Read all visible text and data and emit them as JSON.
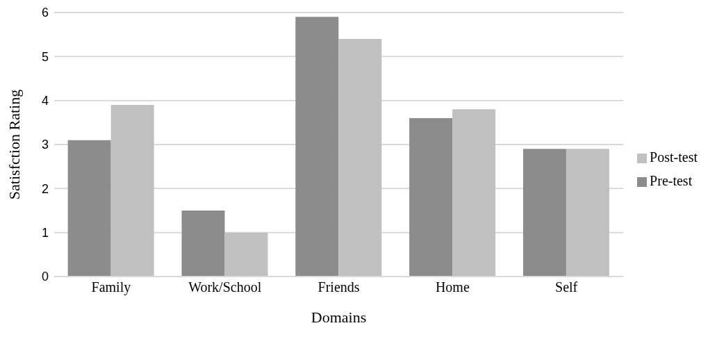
{
  "chart_data": {
    "type": "bar",
    "xlabel": "Domains",
    "ylabel": "Satisfction Rating",
    "categories": [
      "Family",
      "Work/School",
      "Friends",
      "Home",
      "Self"
    ],
    "series": [
      {
        "name": "Pre-test",
        "color": "#8c8c8c",
        "values": [
          3.1,
          1.5,
          5.9,
          3.6,
          2.9
        ]
      },
      {
        "name": "Post-test",
        "color": "#c0c0c0",
        "values": [
          3.9,
          1.0,
          5.4,
          3.8,
          2.9
        ]
      }
    ],
    "ylim": [
      0,
      6
    ],
    "yticks": [
      0,
      1,
      2,
      3,
      4,
      5,
      6
    ],
    "grid": "y",
    "legend": "right"
  }
}
